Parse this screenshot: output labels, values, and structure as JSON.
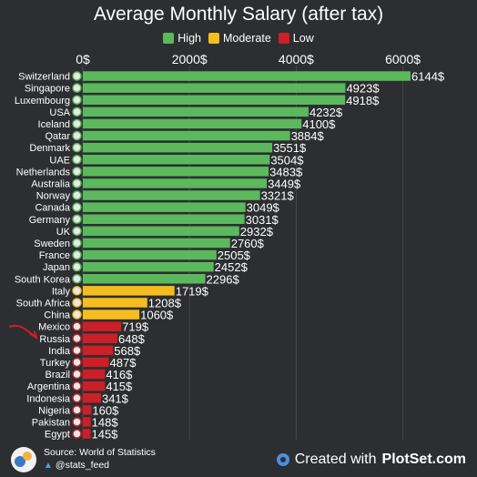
{
  "title": "Average Monthly Salary (after tax)",
  "legend": [
    {
      "label": "High",
      "color": "#5cb85c"
    },
    {
      "label": "Moderate",
      "color": "#f5bd1f"
    },
    {
      "label": "Low",
      "color": "#cc1f28"
    }
  ],
  "footer": {
    "source": "Source: World of Statistics",
    "handle": "@stats_feed",
    "created_prefix": "Created with",
    "brand": "PlotSet.com"
  },
  "chart_data": {
    "type": "bar",
    "orientation": "horizontal",
    "title": "Average Monthly Salary (after tax)",
    "xlim": [
      0,
      6144
    ],
    "x_ticks": [
      0,
      2000,
      4000,
      6000
    ],
    "x_tick_labels": [
      "0$",
      "2000$",
      "4000$",
      "6000$"
    ],
    "x_axis_position": "top",
    "grid": true,
    "legend_position": "top",
    "value_suffix": "$",
    "categories": [
      "Switzerland",
      "Singapore",
      "Luxembourg",
      "USA",
      "Iceland",
      "Qatar",
      "Denmark",
      "UAE",
      "Netherlands",
      "Australia",
      "Norway",
      "Canada",
      "Germany",
      "UK",
      "Sweden",
      "France",
      "Japan",
      "South Korea",
      "Italy",
      "South Africa",
      "China",
      "Mexico",
      "Russia",
      "India",
      "Turkey",
      "Brazil",
      "Argentina",
      "Indonesia",
      "Nigeria",
      "Pakistan",
      "Egypt"
    ],
    "values": [
      6144,
      4923,
      4918,
      4232,
      4100,
      3884,
      3551,
      3504,
      3483,
      3449,
      3321,
      3049,
      3031,
      2932,
      2760,
      2505,
      2452,
      2296,
      1719,
      1208,
      1060,
      719,
      648,
      568,
      487,
      416,
      415,
      341,
      160,
      148,
      145
    ],
    "groups": [
      "High",
      "High",
      "High",
      "High",
      "High",
      "High",
      "High",
      "High",
      "High",
      "High",
      "High",
      "High",
      "High",
      "High",
      "High",
      "High",
      "High",
      "High",
      "Moderate",
      "Moderate",
      "Moderate",
      "Low",
      "Low",
      "Low",
      "Low",
      "Low",
      "Low",
      "Low",
      "Low",
      "Low",
      "Low"
    ],
    "group_colors": {
      "High": "#5cb85c",
      "Moderate": "#f5bd1f",
      "Low": "#cc1f28"
    }
  }
}
